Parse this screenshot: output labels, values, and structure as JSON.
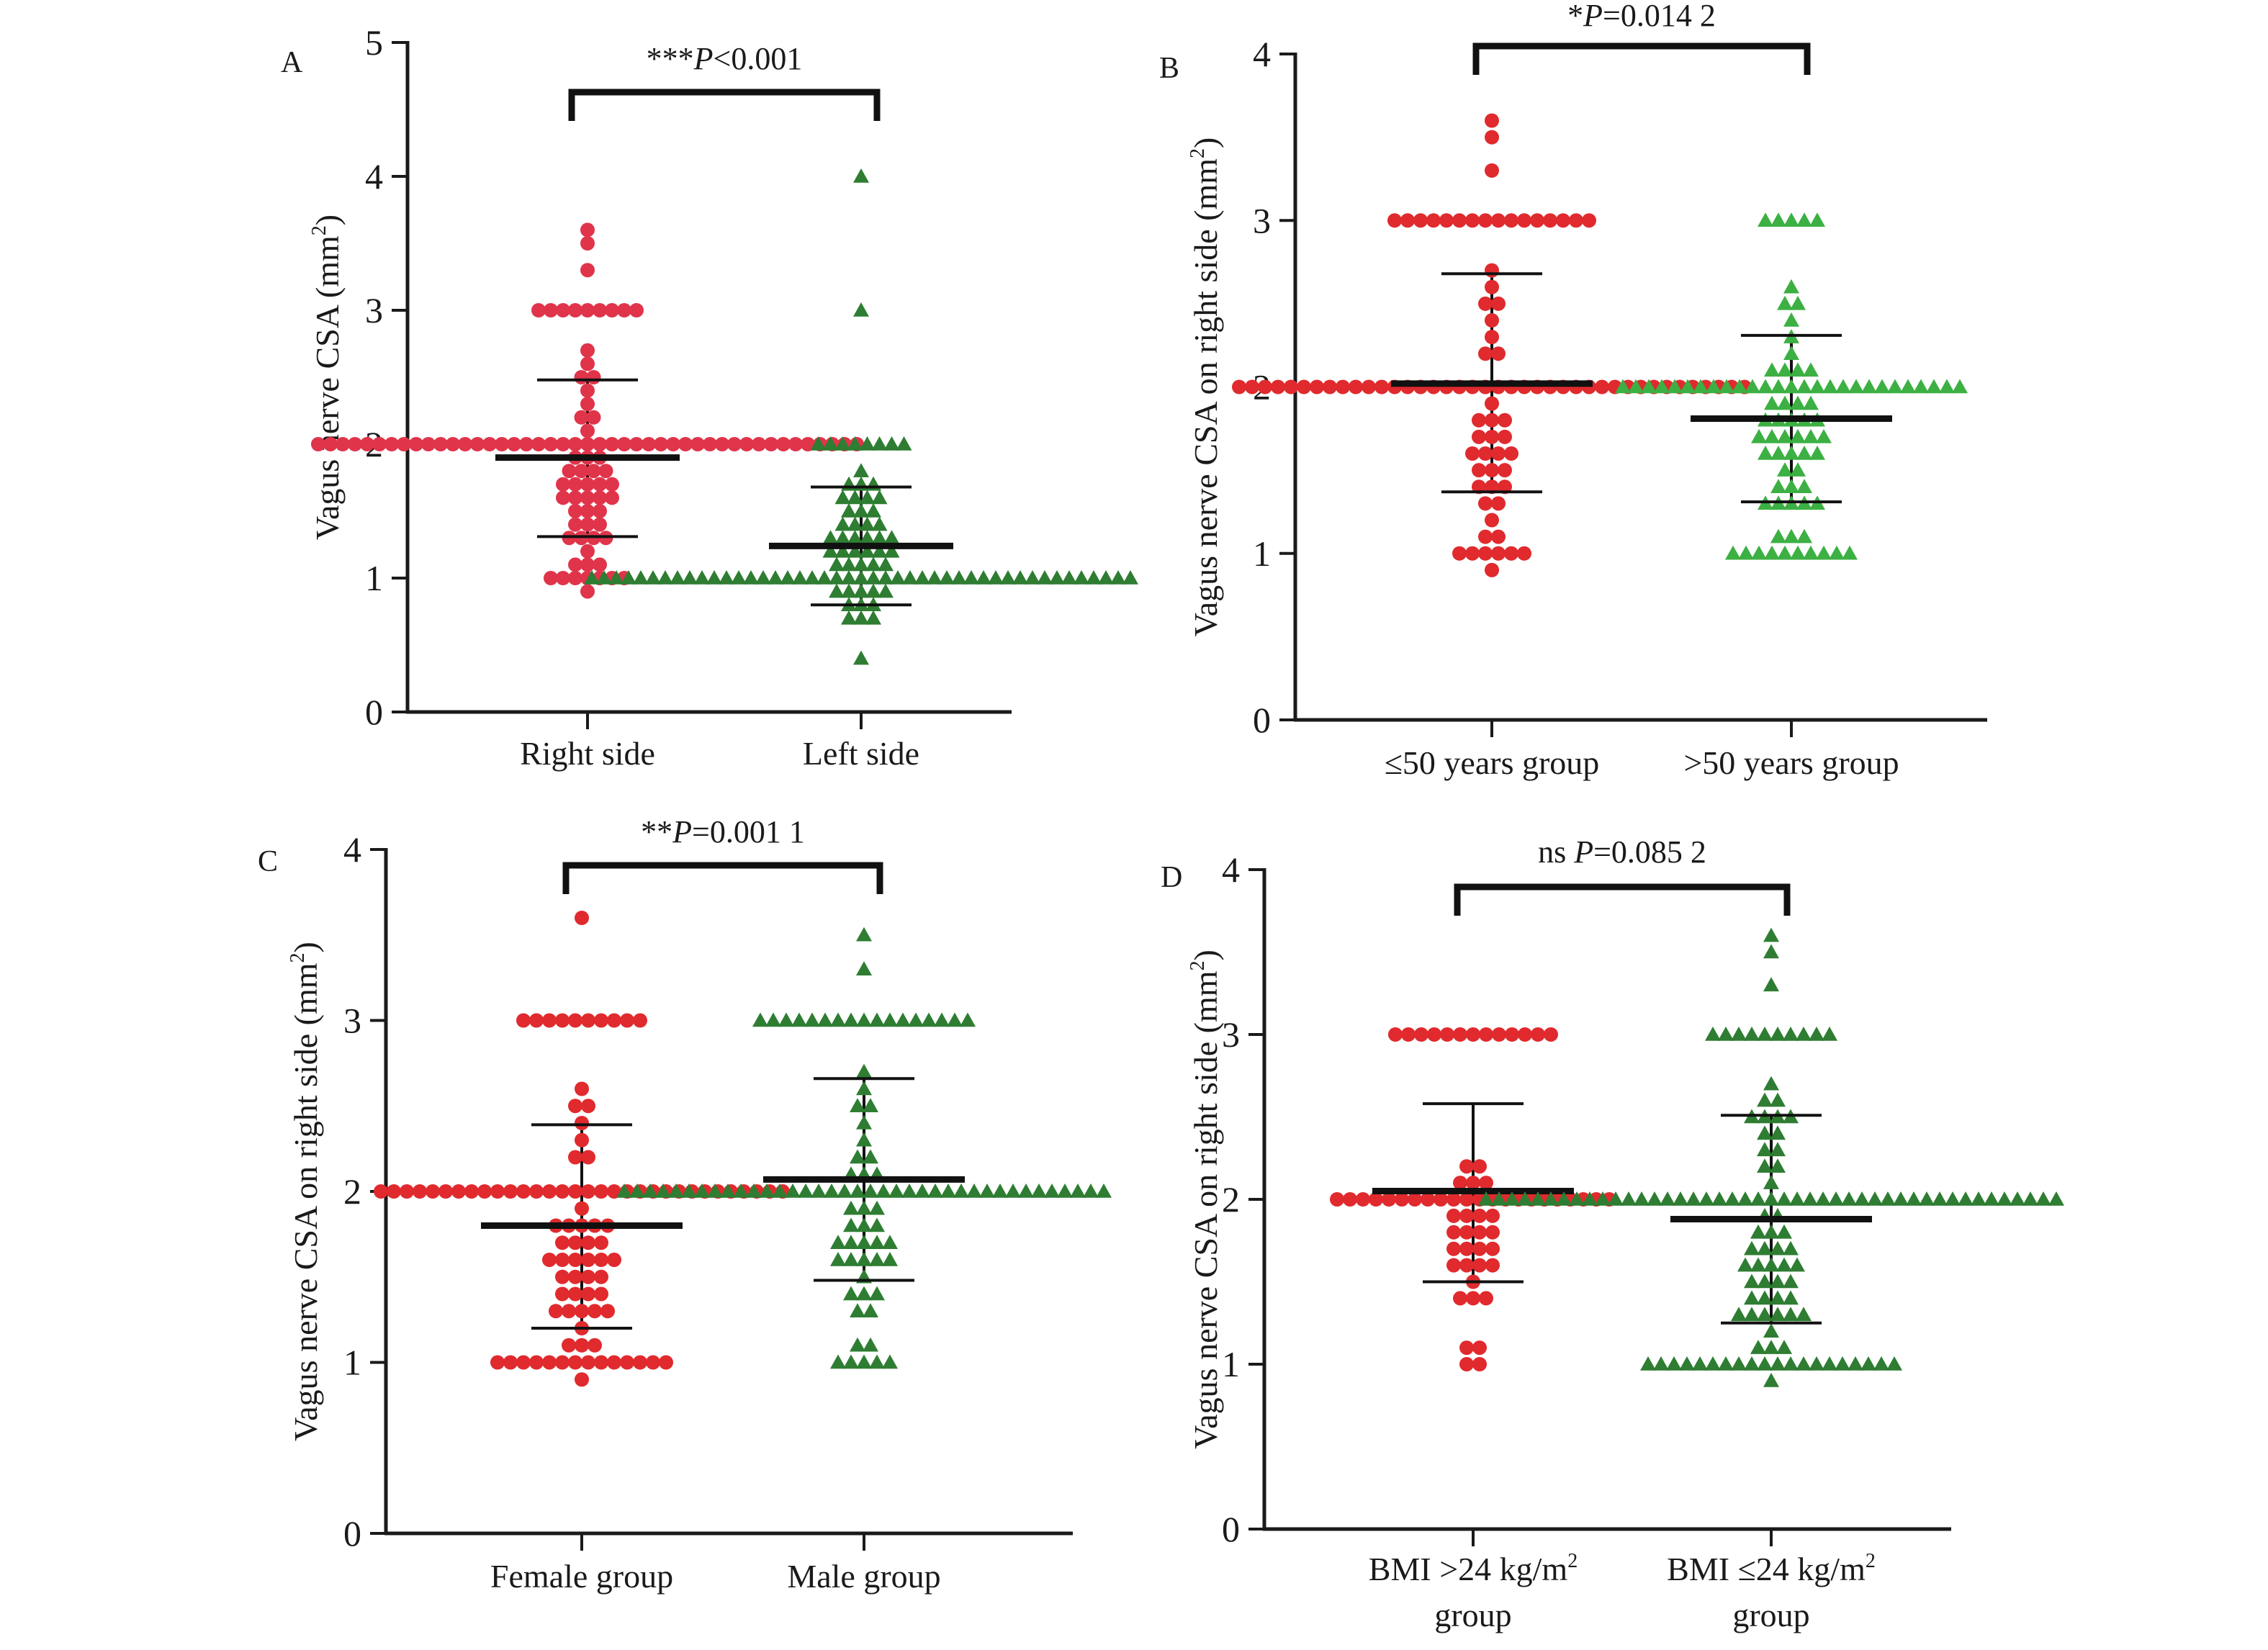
{
  "chart_data": [
    {
      "panel": "A",
      "type": "scatter",
      "subtype": "dot-plot (scatter with mean ± SD)",
      "ylabel": "Vagus nerve CSA (mm²)",
      "ylabel_main": "Vagus nerve CSA (mm",
      "ylabel_sup": "2",
      "ylabel_end": ")",
      "ylim": [
        0,
        5
      ],
      "yticks": [
        0,
        1,
        2,
        3,
        4,
        5
      ],
      "categories": [
        "Right side",
        "Left side"
      ],
      "significance": {
        "stars": "***",
        "p_label": "P",
        "p_text": "<0.001"
      },
      "grid": false,
      "series": [
        {
          "name": "Right side",
          "marker": "circle",
          "color": "#e0344a",
          "mean": 1.9,
          "sd_upper": 2.48,
          "sd_lower": 1.31,
          "points": [
            [
              3.6,
              1
            ],
            [
              3.5,
              1
            ],
            [
              3.3,
              1
            ],
            [
              3.0,
              9
            ],
            [
              2.7,
              1
            ],
            [
              2.6,
              1
            ],
            [
              2.5,
              2
            ],
            [
              2.4,
              1
            ],
            [
              2.3,
              1
            ],
            [
              2.2,
              2
            ],
            [
              2.1,
              1
            ],
            [
              2.0,
              45
            ],
            [
              1.9,
              3
            ],
            [
              1.8,
              4
            ],
            [
              1.7,
              5
            ],
            [
              1.6,
              5
            ],
            [
              1.5,
              3
            ],
            [
              1.4,
              3
            ],
            [
              1.3,
              4
            ],
            [
              1.2,
              1
            ],
            [
              1.1,
              3
            ],
            [
              1.0,
              7
            ],
            [
              0.9,
              1
            ]
          ]
        },
        {
          "name": "Left side",
          "marker": "triangle",
          "color": "#2e7d32",
          "mean": 1.24,
          "sd_upper": 1.68,
          "sd_lower": 0.8,
          "points": [
            [
              4.0,
              1
            ],
            [
              3.0,
              1
            ],
            [
              2.0,
              8
            ],
            [
              1.8,
              1
            ],
            [
              1.7,
              3
            ],
            [
              1.6,
              4
            ],
            [
              1.5,
              3
            ],
            [
              1.4,
              4
            ],
            [
              1.3,
              6
            ],
            [
              1.2,
              6
            ],
            [
              1.1,
              5
            ],
            [
              1.0,
              45
            ],
            [
              0.9,
              5
            ],
            [
              0.8,
              3
            ],
            [
              0.7,
              3
            ],
            [
              0.4,
              1
            ]
          ]
        }
      ]
    },
    {
      "panel": "B",
      "type": "scatter",
      "subtype": "dot-plot (scatter with mean ± SD)",
      "ylabel": "Vagus nerve CSA on right side (mm²)",
      "ylabel_main": "Vagus nerve CSA on right side (mm",
      "ylabel_sup": "2",
      "ylabel_end": ")",
      "ylim": [
        0,
        4
      ],
      "yticks": [
        0,
        1,
        2,
        3,
        4
      ],
      "categories": [
        "≤50 years group",
        ">50 years group"
      ],
      "significance": {
        "stars": "*",
        "p_label": "P",
        "p_text": "=0.014 2"
      },
      "grid": false,
      "series": [
        {
          "name": "≤50 years group",
          "marker": "circle",
          "color": "#e02a2e",
          "mean": 2.02,
          "sd_upper": 2.68,
          "sd_lower": 1.37,
          "points": [
            [
              3.6,
              1
            ],
            [
              3.5,
              1
            ],
            [
              3.3,
              1
            ],
            [
              3.0,
              16
            ],
            [
              2.7,
              1
            ],
            [
              2.6,
              1
            ],
            [
              2.5,
              2
            ],
            [
              2.4,
              1
            ],
            [
              2.3,
              1
            ],
            [
              2.2,
              2
            ],
            [
              2.0,
              40
            ],
            [
              1.9,
              1
            ],
            [
              1.8,
              3
            ],
            [
              1.7,
              3
            ],
            [
              1.6,
              4
            ],
            [
              1.5,
              3
            ],
            [
              1.4,
              3
            ],
            [
              1.3,
              2
            ],
            [
              1.2,
              1
            ],
            [
              1.1,
              2
            ],
            [
              1.0,
              6
            ],
            [
              0.9,
              1
            ]
          ]
        },
        {
          "name": ">50 years group",
          "marker": "triangle",
          "color": "#3cb043",
          "mean": 1.81,
          "sd_upper": 2.31,
          "sd_lower": 1.31,
          "points": [
            [
              3.0,
              5
            ],
            [
              2.6,
              1
            ],
            [
              2.5,
              2
            ],
            [
              2.4,
              1
            ],
            [
              2.3,
              1
            ],
            [
              2.2,
              1
            ],
            [
              2.1,
              4
            ],
            [
              2.0,
              27
            ],
            [
              1.9,
              4
            ],
            [
              1.8,
              5
            ],
            [
              1.7,
              6
            ],
            [
              1.6,
              5
            ],
            [
              1.5,
              2
            ],
            [
              1.4,
              3
            ],
            [
              1.3,
              5
            ],
            [
              1.1,
              3
            ],
            [
              1.0,
              10
            ]
          ]
        }
      ]
    },
    {
      "panel": "C",
      "type": "scatter",
      "subtype": "dot-plot (scatter with mean ± SD)",
      "ylabel": "Vagus nerve CSA on right side (mm²)",
      "ylabel_main": "Vagus nerve CSA on right side (mm",
      "ylabel_sup": "2",
      "ylabel_end": ")",
      "ylim": [
        0,
        4
      ],
      "yticks": [
        0,
        1,
        2,
        3,
        4
      ],
      "categories": [
        "Female group",
        "Male group"
      ],
      "significance": {
        "stars": "**",
        "p_label": "P",
        "p_text": "=0.001 1"
      },
      "grid": false,
      "series": [
        {
          "name": "Female group",
          "marker": "circle",
          "color": "#e02a2e",
          "mean": 1.8,
          "sd_upper": 2.39,
          "sd_lower": 1.2,
          "points": [
            [
              3.6,
              1
            ],
            [
              3.0,
              10
            ],
            [
              2.6,
              1
            ],
            [
              2.5,
              2
            ],
            [
              2.4,
              1
            ],
            [
              2.3,
              1
            ],
            [
              2.2,
              2
            ],
            [
              2.0,
              32
            ],
            [
              1.9,
              1
            ],
            [
              1.8,
              5
            ],
            [
              1.7,
              4
            ],
            [
              1.6,
              6
            ],
            [
              1.5,
              4
            ],
            [
              1.4,
              4
            ],
            [
              1.3,
              5
            ],
            [
              1.2,
              1
            ],
            [
              1.1,
              3
            ],
            [
              1.0,
              14
            ],
            [
              0.9,
              1
            ]
          ]
        },
        {
          "name": "Male group",
          "marker": "triangle",
          "color": "#2e7d32",
          "mean": 2.07,
          "sd_upper": 2.66,
          "sd_lower": 1.48,
          "points": [
            [
              3.5,
              1
            ],
            [
              3.3,
              1
            ],
            [
              3.0,
              17
            ],
            [
              2.7,
              1
            ],
            [
              2.6,
              1
            ],
            [
              2.5,
              2
            ],
            [
              2.4,
              1
            ],
            [
              2.3,
              1
            ],
            [
              2.2,
              2
            ],
            [
              2.1,
              3
            ],
            [
              2.0,
              38
            ],
            [
              1.9,
              3
            ],
            [
              1.8,
              3
            ],
            [
              1.7,
              5
            ],
            [
              1.6,
              5
            ],
            [
              1.5,
              1
            ],
            [
              1.4,
              3
            ],
            [
              1.3,
              2
            ],
            [
              1.1,
              2
            ],
            [
              1.0,
              5
            ]
          ]
        }
      ]
    },
    {
      "panel": "D",
      "type": "scatter",
      "subtype": "dot-plot (scatter with mean ± SD)",
      "ylabel": "Vagus nerve CSA on right side (mm²)",
      "ylabel_main": "Vagus nerve CSA on right side (mm",
      "ylabel_sup": "2",
      "ylabel_end": ")",
      "ylim": [
        0,
        4
      ],
      "yticks": [
        0,
        1,
        2,
        3,
        4
      ],
      "categories": [
        "BMI >24 kg/m² group",
        "BMI ≤24 kg/m² group"
      ],
      "category_lines": [
        {
          "line1": "BMI >24 kg/m",
          "sup": "2",
          "line2": "group"
        },
        {
          "line1": "BMI ≤24 kg/m",
          "sup": "2",
          "line2": "group"
        }
      ],
      "significance": {
        "stars": "ns ",
        "p_label": "P",
        "p_text": "=0.085 2"
      },
      "grid": false,
      "series": [
        {
          "name": "BMI >24 kg/m² group",
          "marker": "circle",
          "color": "#e02a2e",
          "mean": 2.05,
          "sd_upper": 2.58,
          "sd_lower": 1.5,
          "points": [
            [
              3.0,
              13
            ],
            [
              2.2,
              2
            ],
            [
              2.1,
              3
            ],
            [
              2.0,
              22
            ],
            [
              1.9,
              4
            ],
            [
              1.8,
              4
            ],
            [
              1.7,
              4
            ],
            [
              1.6,
              4
            ],
            [
              1.5,
              1
            ],
            [
              1.4,
              3
            ],
            [
              1.1,
              2
            ],
            [
              1.0,
              2
            ]
          ]
        },
        {
          "name": "BMI ≤24 kg/m² group",
          "marker": "triangle",
          "color": "#2e7d32",
          "mean": 1.88,
          "sd_upper": 2.51,
          "sd_lower": 1.25,
          "points": [
            [
              3.6,
              1
            ],
            [
              3.5,
              1
            ],
            [
              3.3,
              1
            ],
            [
              3.0,
              10
            ],
            [
              2.7,
              1
            ],
            [
              2.6,
              2
            ],
            [
              2.5,
              4
            ],
            [
              2.4,
              2
            ],
            [
              2.3,
              2
            ],
            [
              2.2,
              2
            ],
            [
              2.1,
              1
            ],
            [
              2.0,
              45
            ],
            [
              1.9,
              2
            ],
            [
              1.8,
              3
            ],
            [
              1.7,
              4
            ],
            [
              1.6,
              5
            ],
            [
              1.5,
              4
            ],
            [
              1.4,
              4
            ],
            [
              1.3,
              6
            ],
            [
              1.2,
              1
            ],
            [
              1.1,
              3
            ],
            [
              1.0,
              20
            ],
            [
              0.9,
              1
            ]
          ]
        }
      ]
    }
  ]
}
